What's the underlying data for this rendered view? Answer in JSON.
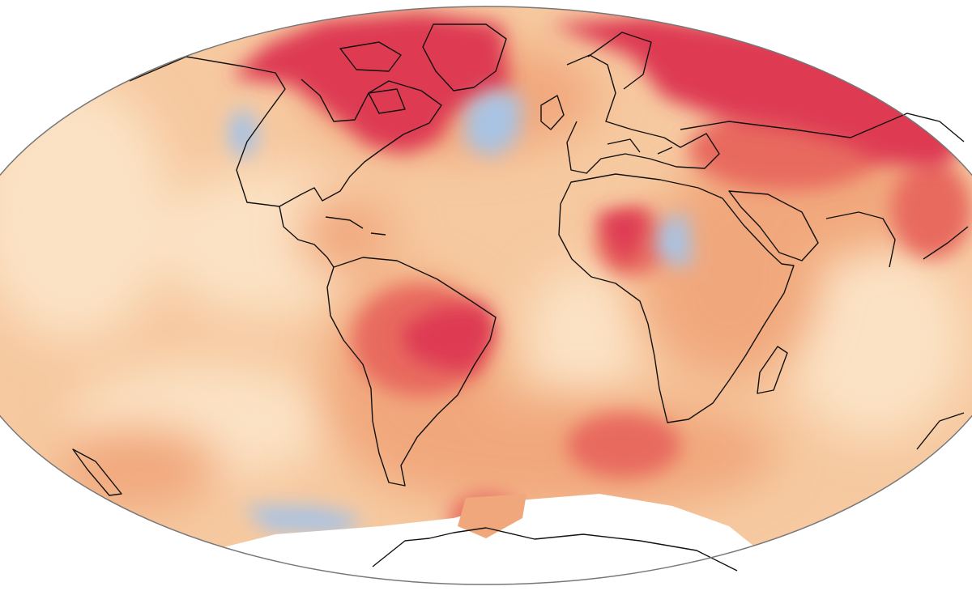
{
  "figure": {
    "type": "map",
    "projection": "mollweide",
    "title": "",
    "legend": "none",
    "colors": {
      "background": "#ffffff",
      "ocean_base": "#f6c9a0",
      "pale_warm": "#fbe2c4",
      "warm": "#f1a77c",
      "hot": "#e86a5f",
      "hottest": "#de3b52",
      "cool": "#a9c3e3",
      "cooler": "#8eb1dc",
      "no_data": "#ffffff",
      "coastline": "#111111",
      "outline": "#777777"
    },
    "regions": [
      {
        "name": "arctic-canada-greenland",
        "level": "hottest"
      },
      {
        "name": "northern-eurasia",
        "level": "hottest"
      },
      {
        "name": "north-atlantic-cold-spot",
        "level": "cool"
      },
      {
        "name": "central-africa",
        "level": "hot"
      },
      {
        "name": "brazil",
        "level": "hottest"
      },
      {
        "name": "south-america",
        "level": "hot"
      },
      {
        "name": "south-atlantic",
        "level": "hot"
      },
      {
        "name": "southern-ocean-cool",
        "level": "cool"
      },
      {
        "name": "antarctica",
        "level": "no_data"
      }
    ]
  }
}
